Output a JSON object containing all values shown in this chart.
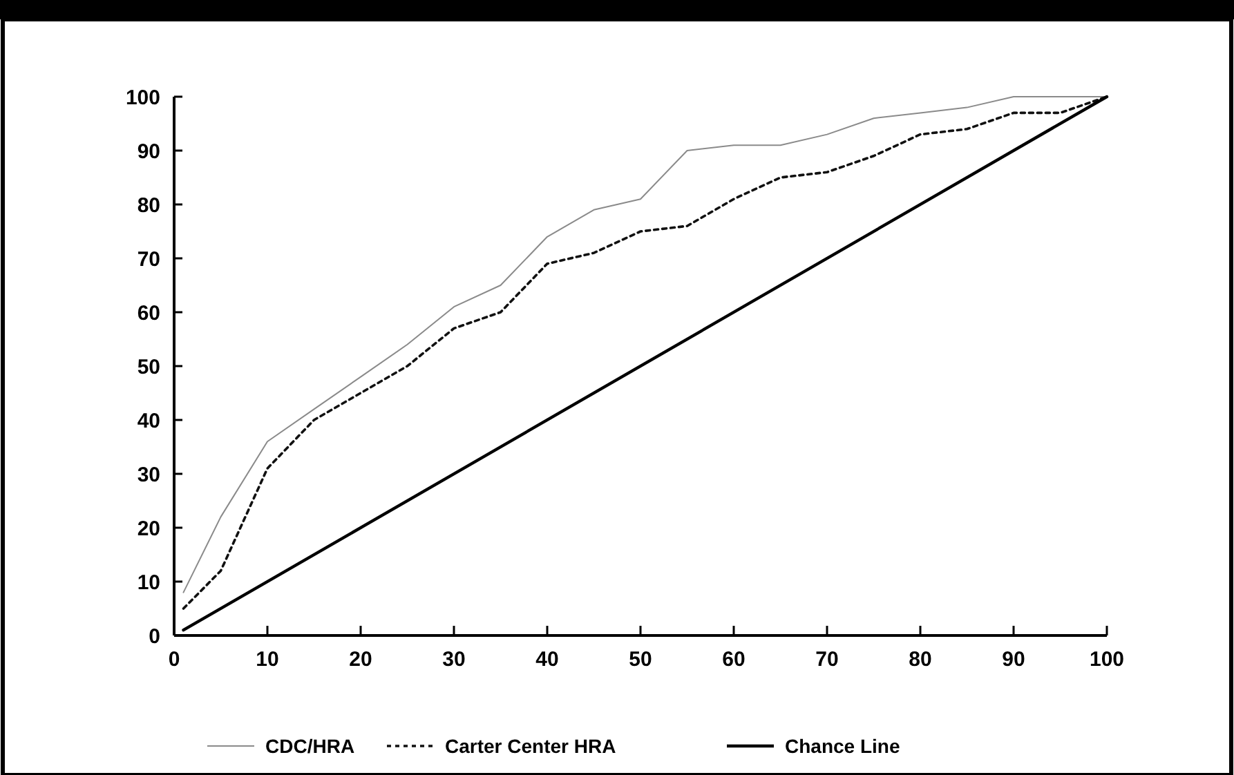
{
  "chart_data": {
    "type": "line",
    "x": [
      1,
      5,
      10,
      15,
      20,
      25,
      30,
      35,
      40,
      45,
      50,
      55,
      60,
      65,
      70,
      75,
      80,
      85,
      90,
      95,
      100
    ],
    "series": [
      {
        "name": "CDC/HRA",
        "color": "#8a8a8a",
        "line_style": "solid",
        "values": [
          8,
          22,
          36,
          42,
          48,
          54,
          61,
          65,
          74,
          79,
          81,
          90,
          91,
          91,
          93,
          96,
          97,
          98,
          100,
          100,
          100
        ]
      },
      {
        "name": "Carter Center HRA",
        "color": "#111111",
        "line_style": "dotted",
        "values": [
          5,
          12,
          31,
          40,
          45,
          50,
          57,
          60,
          69,
          71,
          75,
          76,
          81,
          85,
          86,
          89,
          93,
          94,
          97,
          97,
          100
        ]
      },
      {
        "name": "Chance Line",
        "color": "#000000",
        "line_style": "solid",
        "x": [
          1,
          100
        ],
        "values": [
          1,
          100
        ]
      }
    ],
    "xlim": [
      0,
      100
    ],
    "ylim": [
      0,
      100
    ],
    "xticks": [
      0,
      10,
      20,
      30,
      40,
      50,
      60,
      70,
      80,
      90,
      100
    ],
    "yticks": [
      0,
      10,
      20,
      30,
      40,
      50,
      60,
      70,
      80,
      90,
      100
    ],
    "grid": false,
    "legend": "bottom",
    "marker": "none"
  }
}
